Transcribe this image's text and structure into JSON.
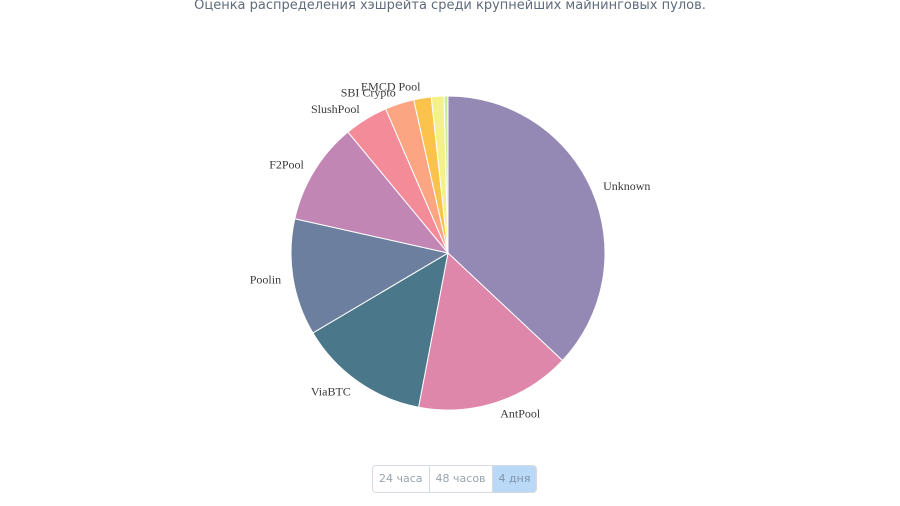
{
  "header": {
    "subtitle": "Оценка распределения хэшрейта среди крупнейших майнинговых пулов."
  },
  "chart_data": {
    "type": "pie",
    "start_angle_deg": 0,
    "direction": "clockwise",
    "slices": [
      {
        "label": "Unknown",
        "value": 37.0,
        "color": "#9488b4"
      },
      {
        "label": "AntPool",
        "value": 16.0,
        "color": "#df86ab"
      },
      {
        "label": "ViaBTC",
        "value": 13.5,
        "color": "#4b778a"
      },
      {
        "label": "Poolin",
        "value": 12.0,
        "color": "#6c7f9f"
      },
      {
        "label": "F2Pool",
        "value": 10.5,
        "color": "#c286b5"
      },
      {
        "label": "SlushPool",
        "value": 4.5,
        "color": "#f48b99"
      },
      {
        "label": "SBI Crypto",
        "value": 3.0,
        "color": "#fba583"
      },
      {
        "label": "EMCD Pool",
        "value": 1.8,
        "color": "#fcc34c"
      },
      {
        "label": "",
        "value": 1.3,
        "color": "#f4f08a"
      },
      {
        "label": "",
        "value": 0.4,
        "color": "#c9ef9a"
      }
    ]
  },
  "range_selector": {
    "options": [
      "24 часа",
      "48 часов",
      "4 дня"
    ],
    "selected": "4 дня"
  }
}
